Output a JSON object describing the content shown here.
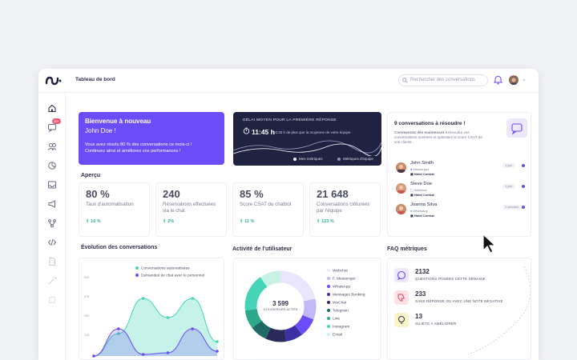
{
  "header": {
    "title": "Tableau de bord",
    "search_placeholder": "Rechercher des conversations"
  },
  "sidebar": {
    "badge": "25+"
  },
  "welcome": {
    "line1": "Bienvenue à nouveau",
    "line2": "John Doe !",
    "line3": "Vous avez résolu 80 % des conversations ce mois-ci !",
    "line4": "Continuez ainsi et améliorez vos performances !"
  },
  "response_card": {
    "title": "DÉLAI MOYEN POUR LA PREMIÈRE RÉPONSE",
    "time": "11:45 h",
    "note": "10:30 h de plus que la moyenne de votre équipe.",
    "legend_mine": "Mes métriques",
    "legend_team": "Métriques d'équipe"
  },
  "overview": {
    "label": "Aperçu",
    "kpis": [
      {
        "value": "80 %",
        "label": "Taux d'automatisation",
        "delta": "16 %"
      },
      {
        "value": "240",
        "label": "Réservations effectuées via le chat",
        "delta": "2%"
      },
      {
        "value": "85 %",
        "label": "Score CSAT du chatbot",
        "delta": "11 %"
      },
      {
        "value": "21 648",
        "label": "Conversations clôturées par l'équipe",
        "delta": "123 %"
      }
    ]
  },
  "conversations": {
    "title": "9 conversations à résoudre !",
    "desc_bold": "Commencez dès maintenant",
    "desc": " à résoudre vos conversations ouvertes et optimisez le score CSAT de vos clients.",
    "items": [
      {
        "name": "John Smith",
        "channel": "Messenger",
        "inbox": "Hôtel Central",
        "time": "1 jour"
      },
      {
        "name": "Steve Doe",
        "channel": "Webchat",
        "inbox": "Hôtel Central",
        "time": "1 jour"
      },
      {
        "name": "Joanna Silva",
        "channel": "WhatsApp",
        "inbox": "Hôtel Central",
        "time": "1 semaine"
      }
    ]
  },
  "evolution": {
    "label": "Évolution des conversations",
    "legend_a": "Conversations automatisées",
    "legend_b": "Demandes de chat avec le personnel",
    "yticks": [
      "500",
      "375",
      "250",
      "125"
    ]
  },
  "activity": {
    "label": "Activité de l'utilisateur",
    "total": "3 599",
    "total_label": "UTILISATEURS ACTIFS",
    "channels": [
      "Webchat",
      "F. Messenger",
      "WhatsApp",
      "Messages Booking",
      "WeChat",
      "Telegram",
      "Line",
      "Instagram",
      "Email"
    ]
  },
  "faq": {
    "label": "FAQ métriques",
    "items": [
      {
        "value": "2132",
        "label": "QUESTIONS POSÉES CETTE SEMAINE"
      },
      {
        "value": "233",
        "label": "SANS RÉPONSE OU AVEC UNE NOTE NÉGATIVE"
      },
      {
        "value": "13",
        "label": "SUJETS À AMÉLIORER"
      }
    ]
  },
  "chart_data": {
    "type": "area",
    "ylim": [
      0,
      500
    ],
    "series": [
      {
        "name": "Conversations automatisées",
        "values": [
          0,
          140,
          360,
          240,
          360,
          90
        ]
      },
      {
        "name": "Demandes de chat avec le personnel",
        "values": [
          0,
          170,
          10,
          20,
          170,
          30
        ]
      }
    ]
  },
  "colors": {
    "accent": "#6b4cf6",
    "teal": "#45d5b6",
    "navy": "#1f2240",
    "delta_green": "#34b28a",
    "faq_purple_bg": "#ece8fd",
    "faq_red_bg": "#fde3e6",
    "faq_yellow_bg": "#fdf3c9"
  }
}
